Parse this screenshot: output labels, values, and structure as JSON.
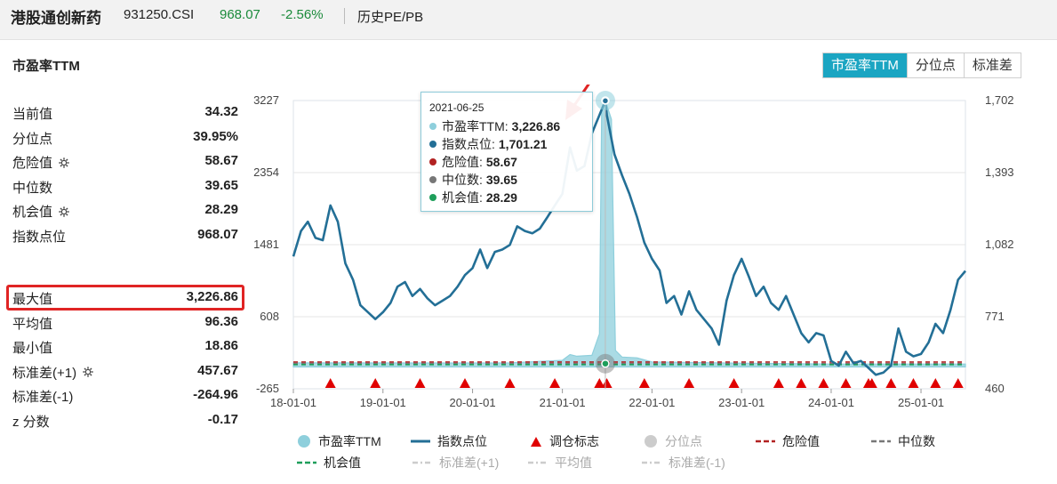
{
  "header": {
    "name": "港股通创新药",
    "code": "931250.CSI",
    "price": "968.07",
    "change": "-2.56%",
    "history": "历史PE/PB"
  },
  "section_title": "市盈率TTM",
  "tabs": [
    {
      "label": "市盈率TTM",
      "active": true
    },
    {
      "label": "分位点",
      "active": false
    },
    {
      "label": "标准差",
      "active": false
    }
  ],
  "stats": {
    "group1": [
      {
        "label": "当前值",
        "value": "34.32",
        "gear": false
      },
      {
        "label": "分位点",
        "value": "39.95%",
        "gear": false
      },
      {
        "label": "危险值",
        "value": "58.67",
        "gear": true
      },
      {
        "label": "中位数",
        "value": "39.65",
        "gear": false
      },
      {
        "label": "机会值",
        "value": "28.29",
        "gear": true
      },
      {
        "label": "指数点位",
        "value": "968.07",
        "gear": false
      }
    ],
    "group2": [
      {
        "label": "最大值",
        "value": "3,226.86",
        "gear": false
      },
      {
        "label": "平均值",
        "value": "96.36",
        "gear": false
      },
      {
        "label": "最小值",
        "value": "18.86",
        "gear": false
      },
      {
        "label": "标准差(+1)",
        "value": "457.67",
        "gear": true
      },
      {
        "label": "标准差(-1)",
        "value": "-264.96",
        "gear": false
      },
      {
        "label": "z 分数",
        "value": "-0.17",
        "gear": false
      }
    ]
  },
  "tooltip": {
    "date": "2021-06-25",
    "rows": [
      {
        "label": "市盈率TTM:",
        "value": "3,226.86",
        "color": "#8ecfdc"
      },
      {
        "label": "指数点位:",
        "value": "1,701.21",
        "color": "#236f96"
      },
      {
        "label": "危险值:",
        "value": "58.67",
        "color": "#b22222"
      },
      {
        "label": "中位数:",
        "value": "39.65",
        "color": "#777777"
      },
      {
        "label": "机会值:",
        "value": "28.29",
        "color": "#1e9e5a"
      }
    ]
  },
  "legend": [
    {
      "label": "市盈率TTM",
      "symbol": "circle",
      "color": "#8ecfdc",
      "enabled": true
    },
    {
      "label": "指数点位",
      "symbol": "line",
      "color": "#236f96",
      "enabled": true
    },
    {
      "label": "调仓标志",
      "symbol": "triangle",
      "color": "#e00000",
      "enabled": true
    },
    {
      "label": "分位点",
      "symbol": "circle",
      "color": "#cccccc",
      "enabled": false
    },
    {
      "label": "危险值",
      "symbol": "dash",
      "color": "#b22222",
      "enabled": true
    },
    {
      "label": "中位数",
      "symbol": "dash",
      "color": "#777777",
      "enabled": true
    },
    {
      "label": "机会值",
      "symbol": "dash",
      "color": "#1e9e5a",
      "enabled": true
    },
    {
      "label": "标准差(+1)",
      "symbol": "dashdot",
      "color": "#cccccc",
      "enabled": false
    },
    {
      "label": "平均值",
      "symbol": "dashdot",
      "color": "#cccccc",
      "enabled": false
    },
    {
      "label": "标准差(-1)",
      "symbol": "dashdot",
      "color": "#cccccc",
      "enabled": false
    }
  ],
  "colors": {
    "accent": "#1ba5c2",
    "index_line": "#236f96",
    "pe_area": "#8ecfdc",
    "danger": "#b22222",
    "median": "#777777",
    "opportunity": "#1e9e5a",
    "marker": "#e00000",
    "highlight_box": "#e02424"
  },
  "chart_data": {
    "type": "line",
    "x_range": [
      "2018-01-01",
      "2025-07-01"
    ],
    "x_ticks": [
      "18-01-01",
      "19-01-01",
      "20-01-01",
      "21-01-01",
      "22-01-01",
      "23-01-01",
      "24-01-01",
      "25-01-01"
    ],
    "y_left": {
      "ticks": [
        "3227",
        "2354",
        "1481",
        "608",
        "-265"
      ],
      "range": [
        -265,
        3227
      ]
    },
    "y_right": {
      "ticks": [
        "1,702",
        "1,393",
        "1,082",
        "771",
        "460"
      ],
      "range": [
        460,
        1702
      ]
    },
    "grid": "horizontal",
    "series": [
      {
        "name": "指数点位",
        "axis": "right",
        "points": [
          [
            "2018-01-01",
            1030
          ],
          [
            "2018-02-01",
            1140
          ],
          [
            "2018-03-01",
            1180
          ],
          [
            "2018-04-01",
            1110
          ],
          [
            "2018-05-01",
            1100
          ],
          [
            "2018-06-01",
            1250
          ],
          [
            "2018-07-01",
            1180
          ],
          [
            "2018-08-01",
            1000
          ],
          [
            "2018-09-01",
            930
          ],
          [
            "2018-10-01",
            820
          ],
          [
            "2018-11-01",
            790
          ],
          [
            "2018-12-01",
            760
          ],
          [
            "2019-01-01",
            790
          ],
          [
            "2019-02-01",
            830
          ],
          [
            "2019-03-01",
            900
          ],
          [
            "2019-04-01",
            920
          ],
          [
            "2019-05-01",
            860
          ],
          [
            "2019-06-01",
            890
          ],
          [
            "2019-07-01",
            850
          ],
          [
            "2019-08-01",
            820
          ],
          [
            "2019-09-01",
            840
          ],
          [
            "2019-10-01",
            860
          ],
          [
            "2019-11-01",
            900
          ],
          [
            "2019-12-01",
            950
          ],
          [
            "2020-01-01",
            980
          ],
          [
            "2020-02-01",
            1060
          ],
          [
            "2020-03-01",
            980
          ],
          [
            "2020-04-01",
            1050
          ],
          [
            "2020-05-01",
            1060
          ],
          [
            "2020-06-01",
            1080
          ],
          [
            "2020-07-01",
            1160
          ],
          [
            "2020-08-01",
            1140
          ],
          [
            "2020-09-01",
            1130
          ],
          [
            "2020-10-01",
            1150
          ],
          [
            "2020-11-01",
            1200
          ],
          [
            "2020-12-01",
            1250
          ],
          [
            "2021-01-01",
            1300
          ],
          [
            "2021-02-01",
            1500
          ],
          [
            "2021-03-01",
            1400
          ],
          [
            "2021-04-01",
            1420
          ],
          [
            "2021-05-01",
            1560
          ],
          [
            "2021-06-25",
            1701
          ],
          [
            "2021-07-01",
            1640
          ],
          [
            "2021-08-01",
            1470
          ],
          [
            "2021-09-01",
            1380
          ],
          [
            "2021-10-01",
            1300
          ],
          [
            "2021-11-01",
            1200
          ],
          [
            "2021-12-01",
            1090
          ],
          [
            "2022-01-01",
            1020
          ],
          [
            "2022-02-01",
            970
          ],
          [
            "2022-03-01",
            830
          ],
          [
            "2022-04-01",
            860
          ],
          [
            "2022-05-01",
            780
          ],
          [
            "2022-06-01",
            880
          ],
          [
            "2022-07-01",
            800
          ],
          [
            "2022-08-01",
            760
          ],
          [
            "2022-09-01",
            720
          ],
          [
            "2022-10-01",
            650
          ],
          [
            "2022-11-01",
            840
          ],
          [
            "2022-12-01",
            950
          ],
          [
            "2023-01-01",
            1020
          ],
          [
            "2023-02-01",
            940
          ],
          [
            "2023-03-01",
            860
          ],
          [
            "2023-04-01",
            900
          ],
          [
            "2023-05-01",
            830
          ],
          [
            "2023-06-01",
            800
          ],
          [
            "2023-07-01",
            860
          ],
          [
            "2023-08-01",
            780
          ],
          [
            "2023-09-01",
            700
          ],
          [
            "2023-10-01",
            660
          ],
          [
            "2023-11-01",
            700
          ],
          [
            "2023-12-01",
            690
          ],
          [
            "2024-01-01",
            580
          ],
          [
            "2024-02-01",
            560
          ],
          [
            "2024-03-01",
            620
          ],
          [
            "2024-04-01",
            570
          ],
          [
            "2024-05-01",
            580
          ],
          [
            "2024-06-01",
            550
          ],
          [
            "2024-07-01",
            520
          ],
          [
            "2024-08-01",
            530
          ],
          [
            "2024-09-01",
            560
          ],
          [
            "2024-10-01",
            720
          ],
          [
            "2024-11-01",
            620
          ],
          [
            "2024-12-01",
            600
          ],
          [
            "2025-01-01",
            610
          ],
          [
            "2025-02-01",
            660
          ],
          [
            "2025-03-01",
            740
          ],
          [
            "2025-04-01",
            700
          ],
          [
            "2025-05-01",
            800
          ],
          [
            "2025-06-01",
            930
          ],
          [
            "2025-07-01",
            968
          ]
        ]
      },
      {
        "name": "市盈率TTM",
        "axis": "left",
        "points": [
          [
            "2018-01-01",
            50
          ],
          [
            "2020-01-01",
            48
          ],
          [
            "2020-06-01",
            50
          ],
          [
            "2021-01-01",
            80
          ],
          [
            "2021-02-01",
            150
          ],
          [
            "2021-03-01",
            130
          ],
          [
            "2021-05-01",
            140
          ],
          [
            "2021-06-01",
            400
          ],
          [
            "2021-06-10",
            3100
          ],
          [
            "2021-06-25",
            3226.86
          ],
          [
            "2021-07-20",
            3000
          ],
          [
            "2021-08-05",
            200
          ],
          [
            "2021-09-01",
            120
          ],
          [
            "2021-11-01",
            110
          ],
          [
            "2022-01-01",
            60
          ],
          [
            "2023-01-01",
            45
          ],
          [
            "2024-01-01",
            35
          ],
          [
            "2025-07-01",
            34.32
          ]
        ]
      },
      {
        "name": "危险值",
        "axis": "left",
        "value": 58.67
      },
      {
        "name": "中位数",
        "axis": "left",
        "value": 39.65
      },
      {
        "name": "机会值",
        "axis": "left",
        "value": 28.29
      }
    ],
    "markers": {
      "name": "调仓标志",
      "dates": [
        "2018-06-01",
        "2018-12-01",
        "2019-06-01",
        "2019-12-01",
        "2020-06-01",
        "2020-12-01",
        "2021-06-01",
        "2021-07-01",
        "2021-12-01",
        "2022-06-01",
        "2022-12-01",
        "2023-06-01",
        "2023-09-01",
        "2023-12-01",
        "2024-03-01",
        "2024-06-01",
        "2024-06-15",
        "2024-09-01",
        "2024-12-01",
        "2025-03-01",
        "2025-06-01"
      ]
    },
    "highlight_point": "2021-06-25"
  }
}
